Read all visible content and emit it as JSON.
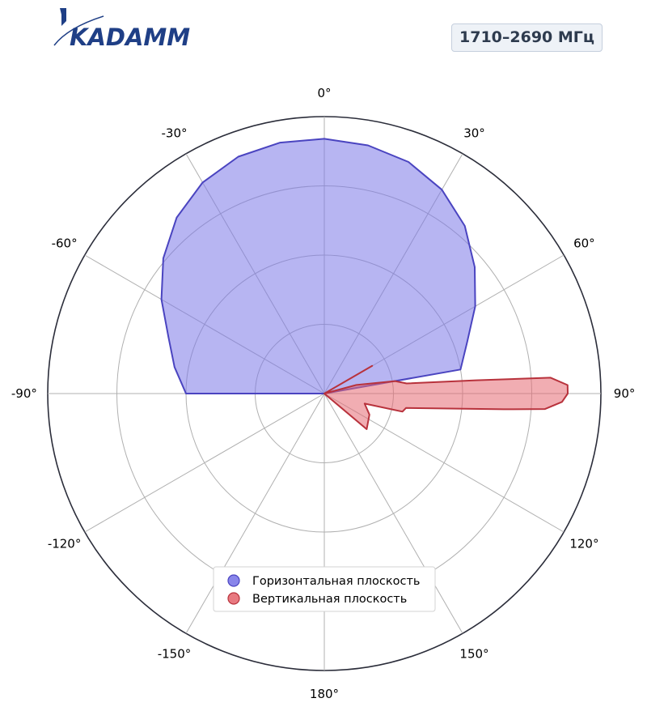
{
  "logo": {
    "brand": "KADAMM"
  },
  "badge": {
    "text": "1710–2690 МГц"
  },
  "chart_data": {
    "type": "polar",
    "radial_grid": [
      0.25,
      0.5,
      0.75,
      1.0
    ],
    "angle_ticks": [
      {
        "angle": 0,
        "label": "0°"
      },
      {
        "angle": 30,
        "label": "30°"
      },
      {
        "angle": 60,
        "label": "60°"
      },
      {
        "angle": 90,
        "label": "90°"
      },
      {
        "angle": 120,
        "label": "120°"
      },
      {
        "angle": 150,
        "label": "150°"
      },
      {
        "angle": 180,
        "label": "180°"
      },
      {
        "angle": -150,
        "label": "-150°"
      },
      {
        "angle": -120,
        "label": "-120°"
      },
      {
        "angle": -90,
        "label": "-90°"
      },
      {
        "angle": -60,
        "label": "-60°"
      },
      {
        "angle": -30,
        "label": "-30°"
      }
    ],
    "grid": true,
    "legend_position": "lower center",
    "series": [
      {
        "name": "Горизонтальная плоскость",
        "color": "#4a44c0",
        "fill": "#7b78e8",
        "points": [
          [
            -90,
            0.5
          ],
          [
            -80,
            0.55
          ],
          [
            -70,
            0.6
          ],
          [
            -60,
            0.68
          ],
          [
            -50,
            0.76
          ],
          [
            -40,
            0.83
          ],
          [
            -30,
            0.88
          ],
          [
            -20,
            0.91
          ],
          [
            -10,
            0.92
          ],
          [
            0,
            0.92
          ],
          [
            10,
            0.91
          ],
          [
            20,
            0.89
          ],
          [
            30,
            0.85
          ],
          [
            40,
            0.79
          ],
          [
            50,
            0.71
          ],
          [
            60,
            0.63
          ],
          [
            70,
            0.55
          ],
          [
            80,
            0.5
          ],
          [
            90,
            0.0
          ],
          [
            180,
            0.0
          ],
          [
            270,
            0.0
          ]
        ]
      },
      {
        "name": "Вертикальная плоскость",
        "color": "#b8323c",
        "fill": "#e66a72",
        "points": [
          [
            60,
            0.2
          ],
          [
            58,
            0.0
          ],
          [
            75,
            0.12
          ],
          [
            80,
            0.26
          ],
          [
            83,
            0.3
          ],
          [
            85,
            0.55
          ],
          [
            86,
            0.82
          ],
          [
            88,
            0.88
          ],
          [
            90,
            0.88
          ],
          [
            92,
            0.86
          ],
          [
            94,
            0.8
          ],
          [
            95,
            0.65
          ],
          [
            100,
            0.3
          ],
          [
            103,
            0.29
          ],
          [
            104,
            0.15
          ],
          [
            115,
            0.18
          ],
          [
            130,
            0.2
          ],
          [
            126,
            0.0
          ]
        ]
      }
    ]
  }
}
